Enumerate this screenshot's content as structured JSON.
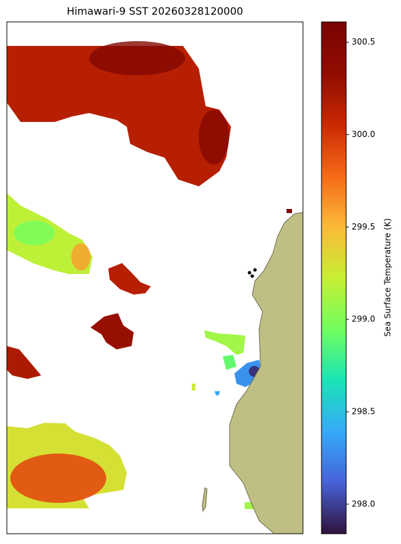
{
  "title": "Himawari-9 SST 20260328120000",
  "colorbar": {
    "label": "Sea Surface Temperature (K)",
    "clim": [
      297.84,
      300.61
    ],
    "ticks": [
      {
        "value": 298.0,
        "label": "298.0"
      },
      298.5,
      {
        "value": 299.0,
        "label": "299.0"
      },
      299.5,
      {
        "value": 300.0,
        "label": "300.0"
      },
      300.5
    ],
    "colormap": [
      [
        0,
        "#30123b"
      ],
      [
        0.1,
        "#4662d7"
      ],
      [
        0.2,
        "#36aaf9"
      ],
      [
        0.3,
        "#1ae4b6"
      ],
      [
        0.4,
        "#72fe5e"
      ],
      [
        0.5,
        "#c7ef34"
      ],
      [
        0.6,
        "#fbb938"
      ],
      [
        0.7,
        "#f56918"
      ],
      [
        0.8,
        "#c92903"
      ],
      [
        0.9,
        "#900c00"
      ],
      [
        1,
        "#7a0403"
      ]
    ]
  },
  "sst_regions": [
    300.15,
    300.5,
    300.45,
    299.2,
    298.95,
    299.6,
    300.15,
    300.3,
    300.2,
    299.1,
    298.9,
    299.25,
    298.3,
    297.95,
    299.3,
    299.9,
    299.1,
    298.4,
    300.55
  ]
}
